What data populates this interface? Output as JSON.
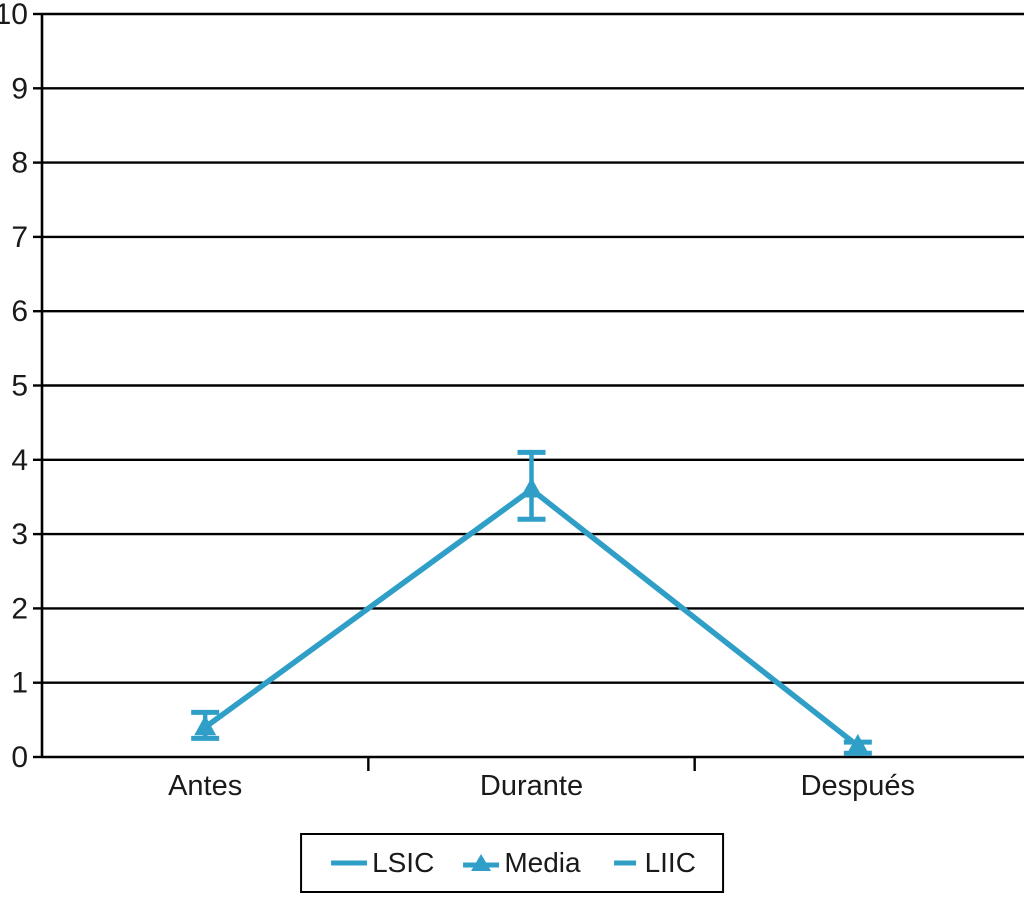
{
  "chart_data": {
    "type": "line",
    "title": "",
    "xlabel": "",
    "ylabel": "",
    "categories": [
      "Antes",
      "Durante",
      "Después"
    ],
    "series": [
      {
        "name": "LSIC",
        "role": "upper-confidence-limit",
        "values": [
          0.6,
          4.1,
          0.2
        ]
      },
      {
        "name": "Media",
        "role": "mean",
        "marker": "triangle",
        "values": [
          0.4,
          3.6,
          0.15
        ]
      },
      {
        "name": "LIIC",
        "role": "lower-confidence-limit",
        "values": [
          0.25,
          3.2,
          0.05
        ]
      }
    ],
    "ylim": [
      0,
      10
    ],
    "ytick_step": 1,
    "grid": "horizontal",
    "legend_position": "bottom",
    "line_color": "#2f9fc7",
    "grid_color": "#000000",
    "text_color": "#1a1a1a"
  },
  "legend": {
    "items": [
      {
        "label": "LSIC",
        "swatch": "line"
      },
      {
        "label": "Media",
        "swatch": "line-triangle"
      },
      {
        "label": "LIIC",
        "swatch": "line-short"
      }
    ]
  }
}
